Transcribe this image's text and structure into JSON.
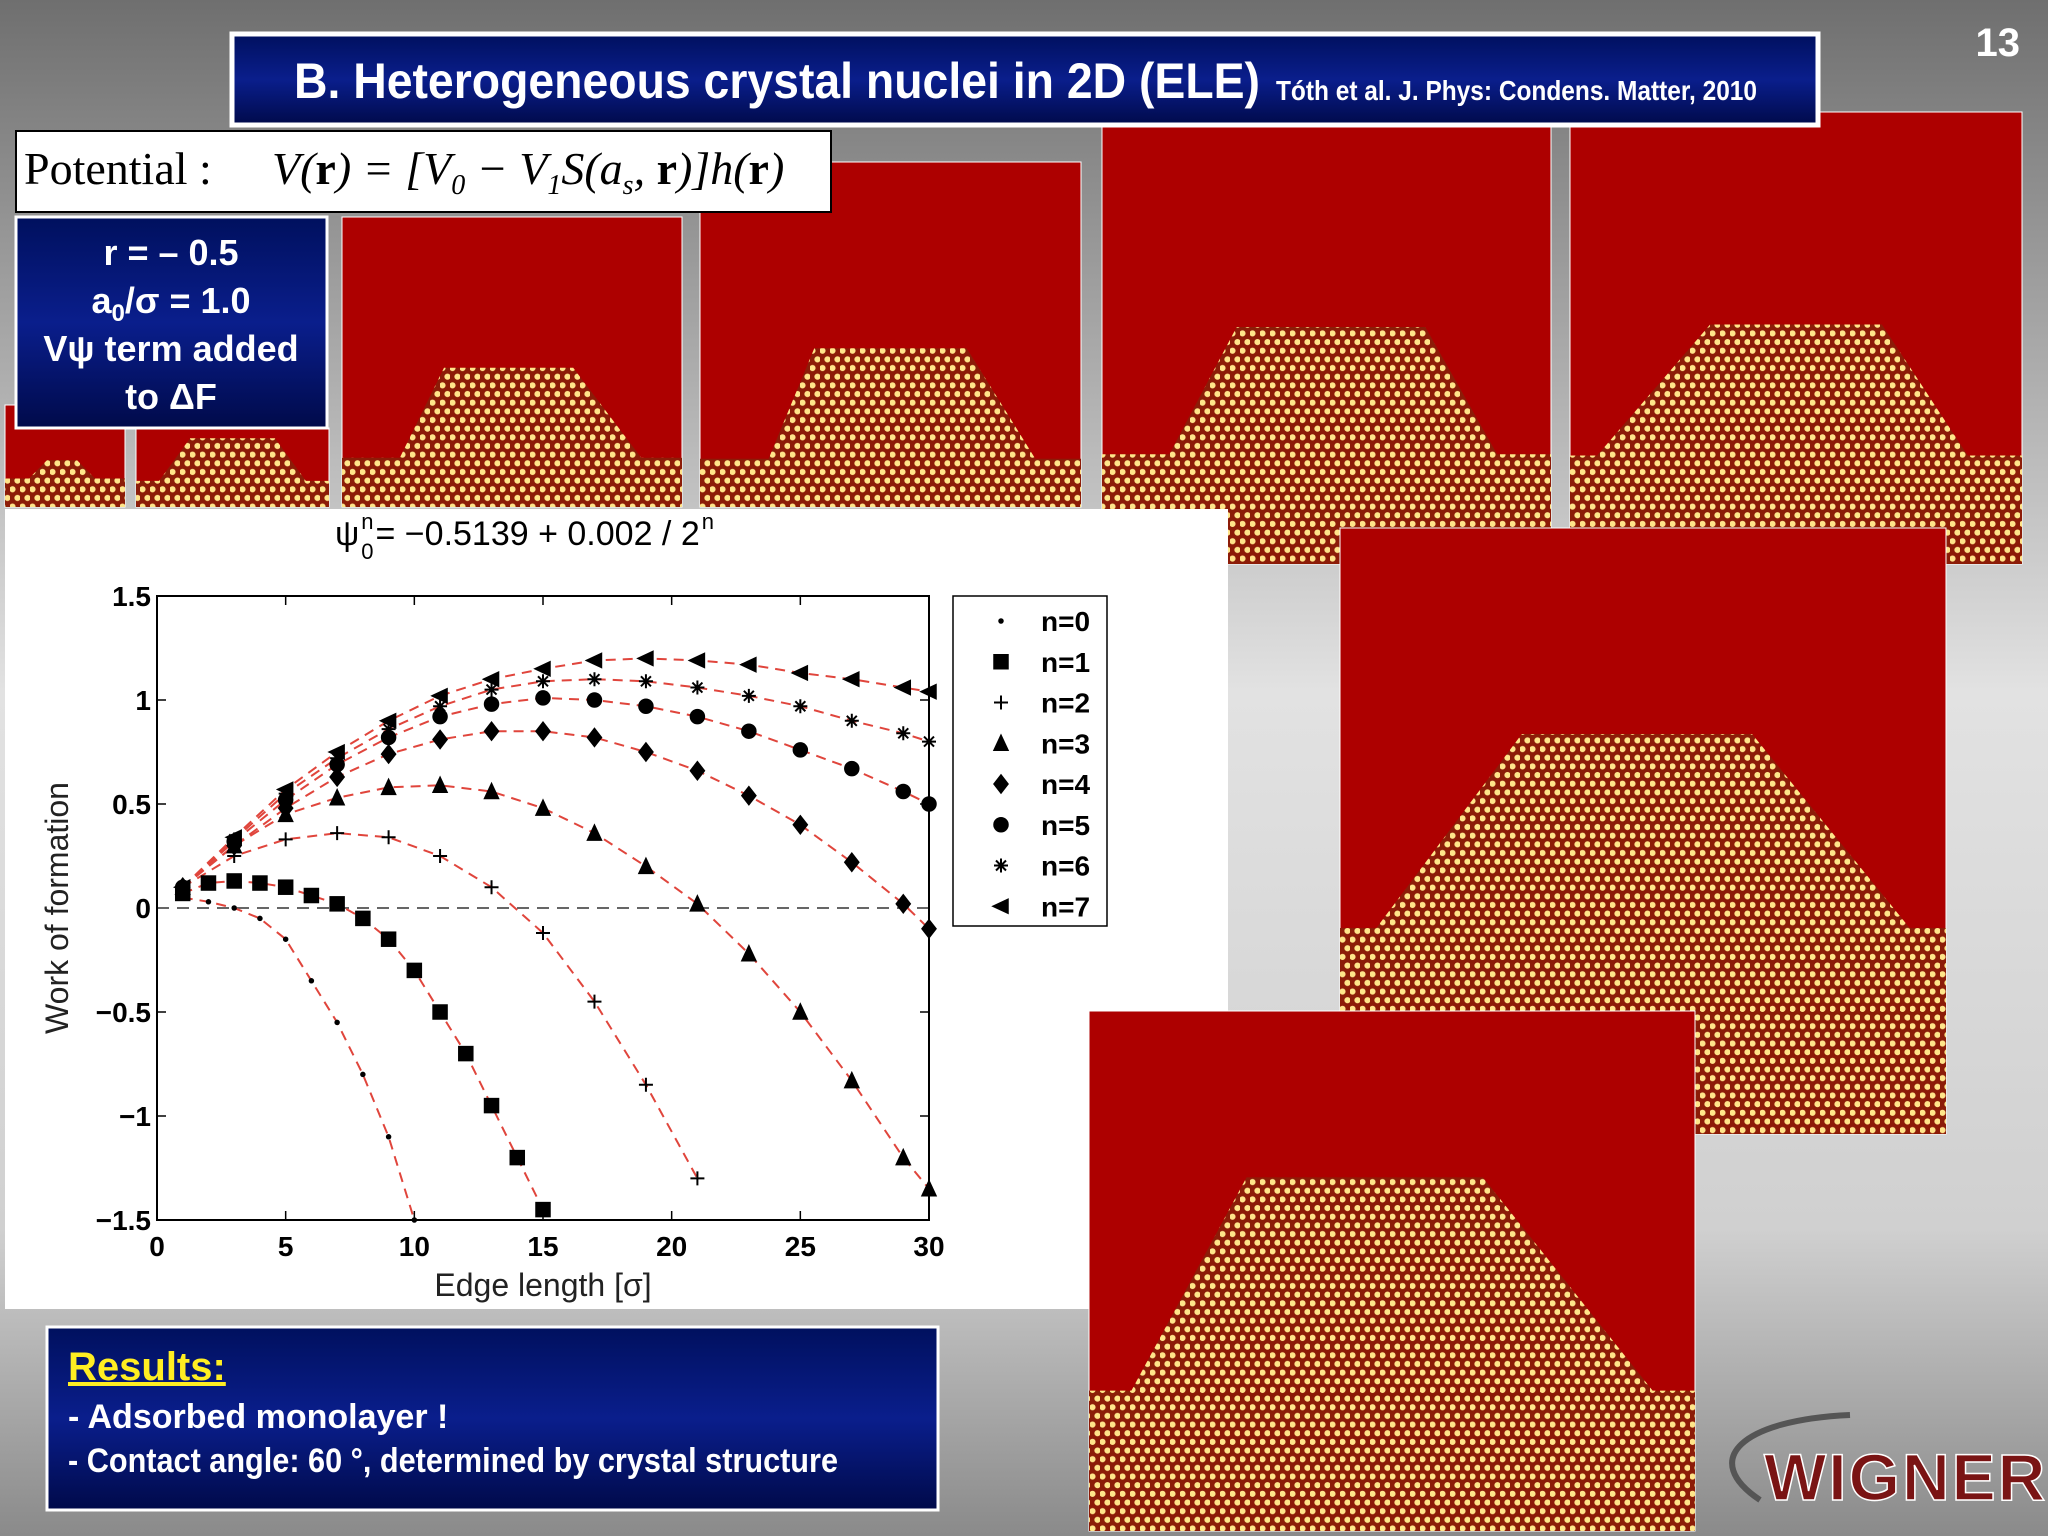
{
  "slide_number": "13",
  "header": {
    "title": "B. Heterogeneous crystal nuclei in 2D (ELE)",
    "citation": "Tóth et al. J. Phys: Condens. Matter, 2010"
  },
  "potential": {
    "label": "Potential :",
    "formula": [
      "V(",
      "r",
      ") = [V",
      "0",
      " − V",
      "1",
      "S(a",
      "s",
      ", ",
      "r",
      ")]h(",
      "r",
      ")"
    ]
  },
  "parameters": {
    "lines": [
      [
        "r = – 0.5"
      ],
      [
        "a",
        "0",
        "/σ = 1.0"
      ],
      [
        "Vψ term added"
      ],
      [
        "to ΔF"
      ]
    ]
  },
  "chart_data": {
    "type": "scatter",
    "title": [
      "ψ",
      "n",
      "0",
      " = −0.5139 + 0.002 / 2",
      "n"
    ],
    "xlabel": "Edge length [σ]",
    "ylabel": "Work of formation",
    "xlim": [
      0,
      30
    ],
    "xticks": [
      0,
      5,
      10,
      15,
      20,
      25,
      30
    ],
    "ylim": [
      -1.5,
      1.5
    ],
    "yticks": [
      {
        "value": -1.5,
        "label": "−1.5"
      },
      {
        "value": -1,
        "label": "−1"
      },
      {
        "value": -0.5,
        "label": "−0.5"
      },
      0,
      0.5,
      1,
      1.5
    ],
    "hline": 0,
    "fit_color": "#e0453c",
    "series": [
      {
        "name": "n=0",
        "color": "#000000",
        "marker": "dot",
        "x": [
          1,
          2,
          3,
          4,
          5,
          6,
          7,
          8,
          9,
          10
        ],
        "values": [
          0.05,
          0.03,
          0,
          -0.05,
          -0.15,
          -0.35,
          -0.55,
          -0.8,
          -1.1,
          -1.5
        ]
      },
      {
        "name": "n=1",
        "color": "#000000",
        "marker": "square",
        "x": [
          1,
          2,
          3,
          4,
          5,
          6,
          7,
          8,
          9,
          10,
          11,
          12,
          13,
          14,
          15
        ],
        "values": [
          0.07,
          0.12,
          0.13,
          0.12,
          0.1,
          0.06,
          0.02,
          -0.05,
          -0.15,
          -0.3,
          -0.5,
          -0.7,
          -0.95,
          -1.2,
          -1.45
        ]
      },
      {
        "name": "n=2",
        "color": "#000000",
        "marker": "plus",
        "x": [
          1,
          3,
          5,
          7,
          9,
          11,
          13,
          15,
          17,
          19,
          21
        ],
        "values": [
          0.1,
          0.25,
          0.33,
          0.36,
          0.34,
          0.25,
          0.1,
          -0.12,
          -0.45,
          -0.85,
          -1.3
        ]
      },
      {
        "name": "n=3",
        "color": "#000000",
        "marker": "triangle",
        "x": [
          1,
          3,
          5,
          7,
          9,
          11,
          13,
          15,
          17,
          19,
          21,
          23,
          25,
          27,
          29,
          30
        ],
        "values": [
          0.1,
          0.3,
          0.45,
          0.53,
          0.58,
          0.59,
          0.56,
          0.48,
          0.36,
          0.2,
          0.02,
          -0.22,
          -0.5,
          -0.83,
          -1.2,
          -1.35
        ]
      },
      {
        "name": "n=4",
        "color": "#000000",
        "marker": "diamond",
        "x": [
          1,
          3,
          5,
          7,
          9,
          11,
          13,
          15,
          17,
          19,
          21,
          23,
          25,
          27,
          29,
          30
        ],
        "values": [
          0.1,
          0.3,
          0.48,
          0.63,
          0.74,
          0.81,
          0.85,
          0.85,
          0.82,
          0.75,
          0.66,
          0.54,
          0.4,
          0.22,
          0.02,
          -0.1
        ]
      },
      {
        "name": "n=5",
        "color": "#000000",
        "marker": "circle",
        "x": [
          1,
          3,
          5,
          7,
          9,
          11,
          13,
          15,
          17,
          19,
          21,
          23,
          25,
          27,
          29,
          30
        ],
        "values": [
          0.1,
          0.32,
          0.52,
          0.69,
          0.82,
          0.92,
          0.98,
          1.01,
          1.0,
          0.97,
          0.92,
          0.85,
          0.76,
          0.67,
          0.56,
          0.5
        ]
      },
      {
        "name": "n=6",
        "color": "#000000",
        "marker": "asterisk",
        "x": [
          1,
          3,
          5,
          7,
          9,
          11,
          13,
          15,
          17,
          19,
          21,
          23,
          25,
          27,
          29,
          30
        ],
        "values": [
          0.1,
          0.33,
          0.55,
          0.72,
          0.86,
          0.97,
          1.05,
          1.09,
          1.1,
          1.09,
          1.06,
          1.02,
          0.97,
          0.9,
          0.84,
          0.8
        ]
      },
      {
        "name": "n=7",
        "color": "#000000",
        "marker": "left-triangle",
        "x": [
          1,
          3,
          5,
          7,
          9,
          11,
          13,
          15,
          17,
          19,
          21,
          23,
          25,
          27,
          29,
          30
        ],
        "values": [
          0.1,
          0.34,
          0.57,
          0.75,
          0.9,
          1.02,
          1.1,
          1.15,
          1.19,
          1.2,
          1.19,
          1.17,
          1.13,
          1.1,
          1.06,
          1.04
        ]
      }
    ]
  },
  "results": {
    "heading": "Results:",
    "items": [
      "-  Adsorbed monolayer !",
      "-  Contact angle: 60 °, determined by crystal structure"
    ]
  },
  "logo": "WIGNER"
}
